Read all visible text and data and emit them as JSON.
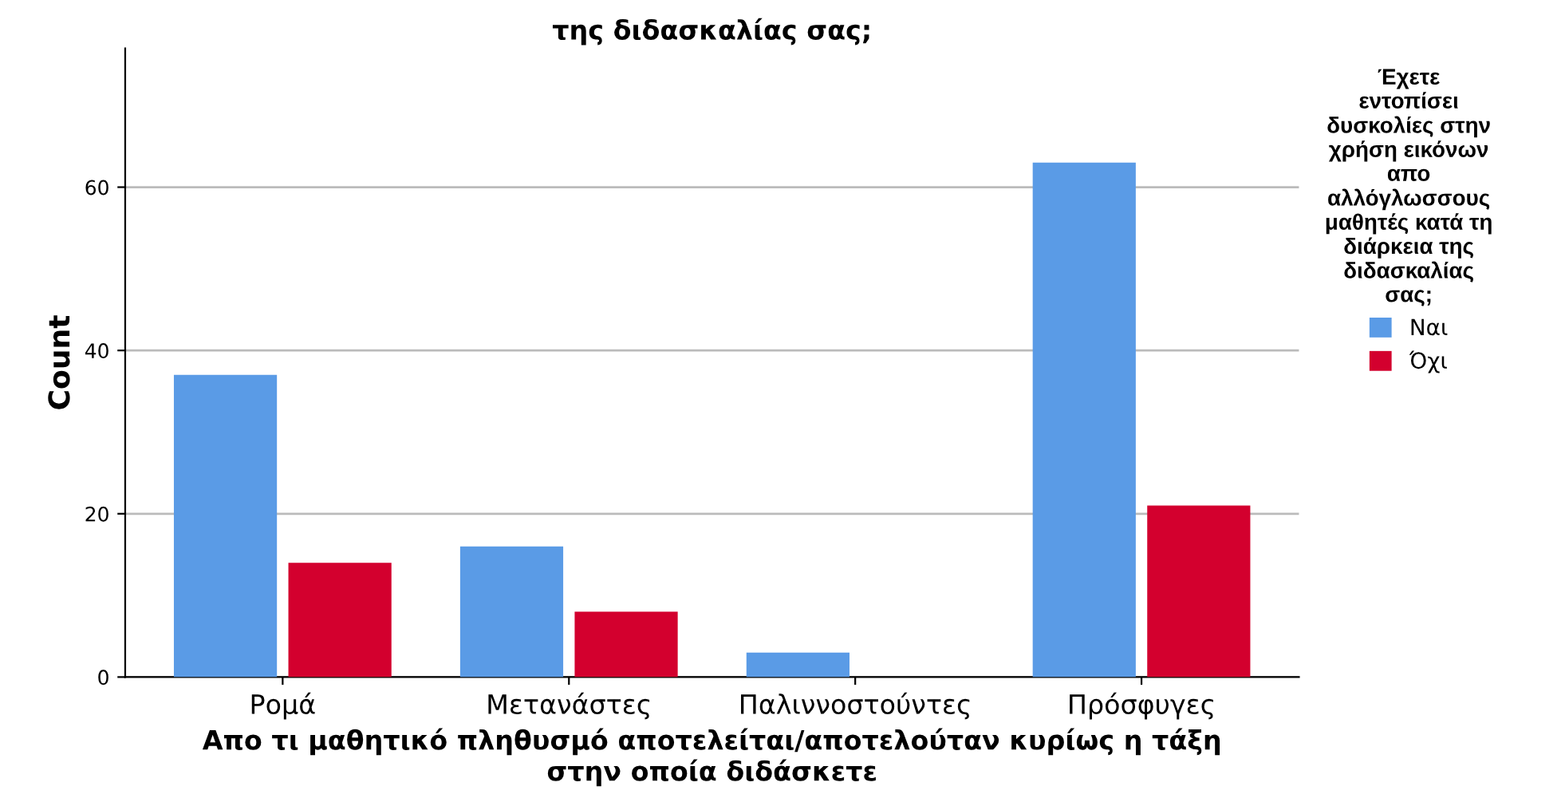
{
  "chart_data": {
    "type": "bar",
    "title": "της διδασκαλίας σας;",
    "categories": [
      "Ρομά",
      "Μετανάστες",
      "Παλιννοστούντες",
      "Πρόσφυγες"
    ],
    "series": [
      {
        "name": "Ναι",
        "color": "#5a9be6",
        "values": [
          37,
          16,
          3,
          63
        ]
      },
      {
        "name": "Όχι",
        "color": "#d3002e",
        "values": [
          14,
          8,
          null,
          21
        ]
      }
    ],
    "xlabel": "Απο τι μαθητικό πληθυσμό αποτελείται/αποτελούταν κυρίως η τάξη\nστην οποία διδάσκετε",
    "ylabel": "Count",
    "legend_title": "Έχετε\nεντοπίσει\nδυσκολίες στην\nχρήση εικόνων\nαπο\nαλλόγλωσσους\nμαθητές κατά τη\nδιάρκεια της\nδιδασκαλίας\nσας;",
    "ylim": [
      0,
      77
    ],
    "yticks": [
      0,
      20,
      40,
      60
    ],
    "grid": "y",
    "legend": "right"
  }
}
